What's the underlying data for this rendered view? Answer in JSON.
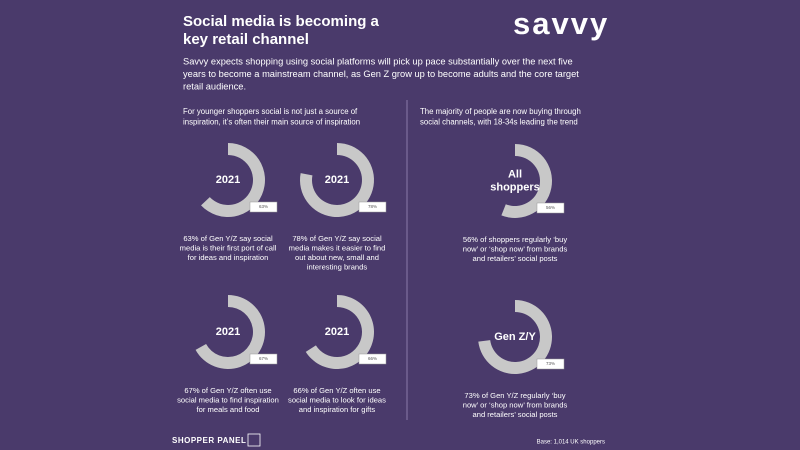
{
  "header": {
    "title": [
      "Social media is becoming a",
      "key retail channel"
    ],
    "logo": "savvy",
    "intro": [
      "Savvy expects shopping using social platforms will pick up pace substantially over the next five",
      "years to become a mainstream channel, as Gen Z grow up to become adults and the core target",
      "retail audience."
    ]
  },
  "sections": [
    {
      "heading": [
        "For younger shoppers social is not just a source of",
        "inspiration, it’s often their main source of inspiration"
      ]
    },
    {
      "heading": [
        "The majority of people are now buying through",
        "social channels, with 18-34s leading the trend"
      ]
    }
  ],
  "chart_data": [
    {
      "type": "donut",
      "center_label": [
        "2021"
      ],
      "values": [
        63
      ],
      "value_labels": [
        "63%"
      ],
      "color": "#c8c8c8",
      "caption": [
        "63% of Gen Y/Z say social",
        "media is their first port of call",
        "for ideas and inspiration"
      ]
    },
    {
      "type": "donut",
      "center_label": [
        "2021"
      ],
      "values": [
        78
      ],
      "value_labels": [
        "78%"
      ],
      "color": "#c8c8c8",
      "caption": [
        "78% of Gen Y/Z say social",
        "media makes it easier to find",
        "out about new, small and",
        "interesting brands"
      ]
    },
    {
      "type": "donut",
      "center_label": [
        "All",
        "shoppers"
      ],
      "values": [
        56
      ],
      "value_labels": [
        "56%"
      ],
      "color": "#c8c8c8",
      "caption": [
        "56% of shoppers regularly ‘buy",
        "now’ or ‘shop now’ from brands",
        "and retailers’ social posts"
      ]
    },
    {
      "type": "donut",
      "center_label": [
        "2021"
      ],
      "values": [
        67
      ],
      "value_labels": [
        "67%"
      ],
      "color": "#c8c8c8",
      "caption": [
        "67% of Gen Y/Z often use",
        "social media to find inspiration",
        "for meals and food"
      ]
    },
    {
      "type": "donut",
      "center_label": [
        "2021"
      ],
      "values": [
        66
      ],
      "value_labels": [
        "66%"
      ],
      "color": "#c8c8c8",
      "caption": [
        "66% of Gen Y/Z often use",
        "social media to look for ideas",
        "and inspiration for gifts"
      ]
    },
    {
      "type": "donut",
      "center_label": [
        "Gen Z/Y"
      ],
      "values": [
        73
      ],
      "value_labels": [
        "73%"
      ],
      "color": "#c8c8c8",
      "caption": [
        "73% of Gen Y/Z regularly ‘buy",
        "now’ or ‘shop now’ from brands",
        "and retailers’ social posts"
      ]
    }
  ],
  "footer": {
    "brand": "SHOPPER PANEL",
    "base": "Base: 1,014 UK shoppers"
  }
}
